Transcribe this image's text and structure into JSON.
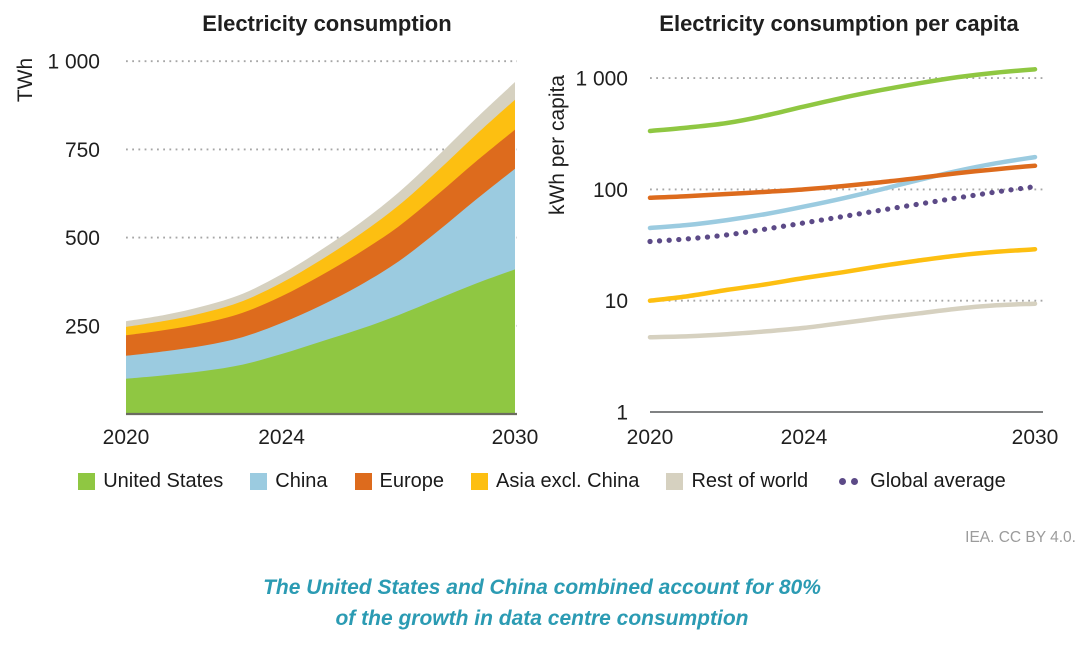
{
  "source_note": "IEA. CC BY 4.0.",
  "caption": {
    "line1": "The United States and China combined account for 80%",
    "line2": "of the growth in data centre consumption"
  },
  "colors": {
    "united_states": "#8fc742",
    "china": "#9bcbe0",
    "europe": "#dd6b1d",
    "asia_excl_china": "#fdbf11",
    "rest_of_world": "#d6d1c0",
    "global_average": "#5c4a87",
    "gridline": "#a6a6a6",
    "caption_teal": "#2b9bb3",
    "note_gray": "#9c9c9c"
  },
  "legend": {
    "items": [
      {
        "label": "United States",
        "color": "#8fc742",
        "marker": "square"
      },
      {
        "label": "China",
        "color": "#9bcbe0",
        "marker": "square"
      },
      {
        "label": "Europe",
        "color": "#dd6b1d",
        "marker": "square"
      },
      {
        "label": "Asia excl. China",
        "color": "#fdbf11",
        "marker": "square"
      },
      {
        "label": "Rest of world",
        "color": "#d6d1c0",
        "marker": "square"
      },
      {
        "label": "Global average",
        "color": "#5c4a87",
        "marker": "dots"
      }
    ]
  },
  "chart_data": [
    {
      "type": "area",
      "stacked": true,
      "title": "Electricity consumption",
      "ylabel": "TWh",
      "yscale": "linear",
      "ylim": [
        0,
        1000
      ],
      "x": [
        2020,
        2021,
        2022,
        2023,
        2024,
        2025,
        2026,
        2027,
        2028,
        2029,
        2030
      ],
      "xticks": [
        {
          "value": 2020,
          "label": "2020"
        },
        {
          "value": 2024,
          "label": "2024"
        },
        {
          "value": 2030,
          "label": "2030"
        }
      ],
      "yticks": [
        {
          "value": 250,
          "label": "250",
          "grid": true
        },
        {
          "value": 500,
          "label": "500",
          "grid": true
        },
        {
          "value": 750,
          "label": "750",
          "grid": true
        },
        {
          "value": 1000,
          "label": "1 000",
          "grid": true
        }
      ],
      "series": [
        {
          "name": "United States",
          "color": "#8fc742",
          "values": [
            100,
            110,
            122,
            140,
            170,
            205,
            240,
            280,
            325,
            370,
            410
          ]
        },
        {
          "name": "China",
          "color": "#9bcbe0",
          "values": [
            65,
            68,
            72,
            78,
            88,
            102,
            124,
            152,
            192,
            238,
            285
          ]
        },
        {
          "name": "Europe",
          "color": "#dd6b1d",
          "values": [
            58,
            60,
            64,
            69,
            76,
            85,
            93,
            99,
            104,
            108,
            111
          ]
        },
        {
          "name": "Asia excl. China",
          "color": "#fdbf11",
          "values": [
            24,
            26,
            29,
            33,
            38,
            44,
            51,
            59,
            67,
            76,
            85
          ]
        },
        {
          "name": "Rest of world",
          "color": "#d6d1c0",
          "values": [
            16,
            17,
            19,
            21,
            24,
            28,
            32,
            37,
            42,
            46,
            50
          ]
        }
      ]
    },
    {
      "type": "line",
      "title": "Electricity consumption per capita",
      "ylabel": "kWh per capita",
      "yscale": "log",
      "ylim": [
        1,
        1000
      ],
      "x": [
        2020,
        2021,
        2022,
        2023,
        2024,
        2025,
        2026,
        2027,
        2028,
        2029,
        2030
      ],
      "xticks": [
        {
          "value": 2020,
          "label": "2020"
        },
        {
          "value": 2024,
          "label": "2024"
        },
        {
          "value": 2030,
          "label": "2030"
        }
      ],
      "yticks": [
        {
          "value": 1,
          "label": "1",
          "grid": false
        },
        {
          "value": 10,
          "label": "10",
          "grid": true
        },
        {
          "value": 100,
          "label": "100",
          "grid": true
        },
        {
          "value": 1000,
          "label": "1 000",
          "grid": true
        }
      ],
      "series": [
        {
          "name": "United States",
          "color": "#8fc742",
          "style": "solid",
          "values": [
            335,
            360,
            395,
            460,
            555,
            665,
            780,
            900,
            1020,
            1120,
            1200
          ]
        },
        {
          "name": "China",
          "color": "#9bcbe0",
          "style": "solid",
          "values": [
            45,
            48,
            53,
            60,
            70,
            83,
            100,
            122,
            147,
            172,
            195
          ]
        },
        {
          "name": "Europe",
          "color": "#dd6b1d",
          "style": "solid",
          "values": [
            84,
            87,
            91,
            95,
            100,
            107,
            116,
            127,
            140,
            152,
            163
          ]
        },
        {
          "name": "Asia excl. China",
          "color": "#fdbf11",
          "style": "solid",
          "values": [
            10,
            11,
            12.5,
            14,
            16,
            18,
            20.5,
            23,
            25.5,
            27.5,
            29
          ]
        },
        {
          "name": "Rest of world",
          "color": "#d6d1c0",
          "style": "solid",
          "values": [
            4.7,
            4.8,
            5.0,
            5.3,
            5.7,
            6.3,
            7.0,
            7.7,
            8.5,
            9.1,
            9.4
          ]
        },
        {
          "name": "Global average",
          "color": "#5c4a87",
          "style": "dotted",
          "values": [
            34,
            36,
            39,
            44,
            50,
            57,
            65,
            74,
            84,
            95,
            106
          ]
        }
      ]
    }
  ]
}
